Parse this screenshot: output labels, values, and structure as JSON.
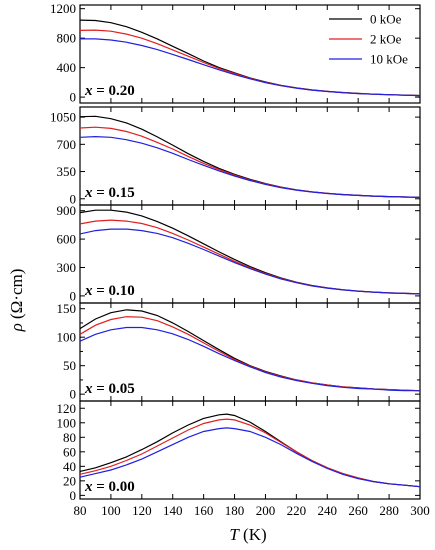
{
  "chart_data": {
    "type": "line",
    "xlabel": {
      "symbol": "T",
      "unit": " (K)"
    },
    "ylabel": {
      "symbol": "ρ",
      "unit": " (Ω·cm)"
    },
    "xlim": [
      80,
      300
    ],
    "xticks": [
      80,
      100,
      120,
      140,
      160,
      180,
      200,
      220,
      240,
      260,
      280,
      300
    ],
    "legend": {
      "placement": "top-right of top panel",
      "entries": [
        {
          "label": "0 kOe",
          "color": "#000000"
        },
        {
          "label": "2 kOe",
          "color": "#e02020"
        },
        {
          "label": "10 kOe",
          "color": "#2020e0"
        }
      ]
    },
    "panels": [
      {
        "label": {
          "var": "x",
          "value": " = 0.20"
        },
        "ylim": [
          -80,
          1250
        ],
        "yticks": [
          0,
          400,
          800,
          1200
        ],
        "yticklabels": [
          "0",
          "400",
          "800",
          "1200"
        ],
        "x": [
          80,
          90,
          100,
          110,
          120,
          130,
          140,
          150,
          160,
          170,
          180,
          190,
          200,
          210,
          220,
          230,
          240,
          250,
          260,
          270,
          280,
          290,
          300
        ],
        "series": [
          {
            "name": "0 kOe",
            "color": "#000000",
            "values": [
              1045,
              1040,
              1010,
              955,
              880,
              790,
              690,
              590,
              490,
              400,
              330,
              260,
              205,
              160,
              125,
              98,
              78,
              62,
              50,
              40,
              33,
              27,
              22
            ]
          },
          {
            "name": "2 kOe",
            "color": "#e02020",
            "values": [
              905,
              910,
              895,
              855,
              800,
              725,
              640,
              555,
              470,
              390,
              320,
              255,
              200,
              158,
              123,
              97,
              77,
              61,
              49,
              40,
              32,
              26,
              21
            ]
          },
          {
            "name": "10 kOe",
            "color": "#2020e0",
            "values": [
              790,
              790,
              775,
              745,
              700,
              645,
              580,
              510,
              440,
              370,
              305,
              248,
              195,
              155,
              121,
              95,
              76,
              60,
              48,
              39,
              32,
              26,
              21
            ]
          }
        ]
      },
      {
        "label": {
          "var": "x",
          "value": " = 0.15"
        },
        "ylim": [
          -80,
          1180
        ],
        "yticks": [
          0,
          350,
          700,
          1050
        ],
        "yticklabels": [
          "0",
          "350",
          "700",
          "1050"
        ],
        "x": [
          80,
          90,
          100,
          110,
          120,
          130,
          140,
          150,
          160,
          170,
          180,
          190,
          200,
          210,
          220,
          230,
          240,
          250,
          260,
          270,
          280,
          290,
          300
        ],
        "series": [
          {
            "name": "0 kOe",
            "color": "#000000",
            "values": [
              1055,
              1060,
              1030,
              975,
              895,
              795,
              690,
              580,
              480,
              390,
              315,
              250,
              195,
              150,
              115,
              90,
              70,
              55,
              44,
              35,
              28,
              23,
              19
            ]
          },
          {
            "name": "2 kOe",
            "color": "#e02020",
            "values": [
              910,
              920,
              905,
              865,
              805,
              725,
              640,
              545,
              455,
              375,
              305,
              243,
              190,
              147,
              113,
              88,
              69,
              54,
              43,
              35,
              28,
              23,
              19
            ]
          },
          {
            "name": "10 kOe",
            "color": "#2020e0",
            "values": [
              790,
              800,
              790,
              760,
              715,
              655,
              585,
              505,
              430,
              358,
              293,
              235,
              185,
              143,
              111,
              87,
              68,
              54,
              43,
              34,
              28,
              23,
              19
            ]
          }
        ]
      },
      {
        "label": {
          "var": "x",
          "value": " = 0.10"
        },
        "ylim": [
          -75,
          960
        ],
        "yticks": [
          0,
          300,
          600,
          900
        ],
        "yticklabels": [
          "0",
          "300",
          "600",
          "900"
        ],
        "x": [
          80,
          90,
          100,
          110,
          120,
          130,
          140,
          150,
          160,
          170,
          180,
          190,
          200,
          210,
          220,
          230,
          240,
          250,
          260,
          270,
          280,
          290,
          300
        ],
        "series": [
          {
            "name": "0 kOe",
            "color": "#000000",
            "values": [
              880,
              905,
              905,
              885,
              845,
              785,
              715,
              635,
              550,
              465,
              385,
              310,
              245,
              190,
              145,
              110,
              84,
              65,
              51,
              40,
              32,
              26,
              21
            ]
          },
          {
            "name": "2 kOe",
            "color": "#e02020",
            "values": [
              760,
              790,
              800,
              790,
              765,
              720,
              660,
              590,
              515,
              440,
              365,
              298,
              237,
              185,
              142,
              108,
              83,
              64,
              50,
              40,
              32,
              26,
              21
            ]
          },
          {
            "name": "10 kOe",
            "color": "#2020e0",
            "values": [
              655,
              690,
              705,
              705,
              690,
              660,
              615,
              555,
              490,
              420,
              352,
              288,
              230,
              180,
              139,
              106,
              82,
              63,
              50,
              39,
              31,
              26,
              21
            ]
          }
        ]
      },
      {
        "label": {
          "var": "x",
          "value": " = 0.05"
        },
        "ylim": [
          -12,
          160
        ],
        "yticks": [
          0,
          25,
          50,
          75,
          100,
          125,
          150
        ],
        "yticklabels": [
          "0",
          "",
          "50",
          "",
          "100",
          "",
          "150"
        ],
        "x": [
          80,
          90,
          100,
          110,
          120,
          130,
          140,
          150,
          160,
          170,
          180,
          190,
          200,
          210,
          220,
          230,
          240,
          250,
          260,
          270,
          280,
          290,
          300
        ],
        "series": [
          {
            "name": "0 kOe",
            "color": "#000000",
            "values": [
              115,
              132,
              143,
              148,
              146,
              138,
              125,
              110,
              94,
              78,
              63,
              50,
              40,
              32,
              25,
              20,
              16,
              13,
              11,
              9,
              8,
              7,
              6
            ]
          },
          {
            "name": "2 kOe",
            "color": "#e02020",
            "values": [
              105,
              121,
              131,
              136,
              135,
              129,
              118,
              105,
              90,
              75,
              61,
              49,
              39,
              31,
              25,
              20,
              16,
              13,
              11,
              9,
              8,
              7,
              6
            ]
          },
          {
            "name": "10 kOe",
            "color": "#2020e0",
            "values": [
              93,
              105,
              113,
              117,
              117,
              113,
              106,
              96,
              84,
              71,
              59,
              48,
              38,
              30,
              24,
              19,
              15,
              12,
              10,
              9,
              7,
              6,
              6
            ]
          }
        ]
      },
      {
        "label": {
          "var": "x",
          "value": " = 0.00"
        },
        "ylim": [
          -5,
          130
        ],
        "yticks": [
          0,
          20,
          40,
          60,
          80,
          100,
          120
        ],
        "yticklabels": [
          "0",
          "20",
          "40",
          "60",
          "80",
          "100",
          "120"
        ],
        "x": [
          80,
          90,
          100,
          110,
          120,
          130,
          140,
          150,
          160,
          170,
          175,
          180,
          190,
          200,
          210,
          220,
          230,
          240,
          250,
          260,
          270,
          280,
          290,
          300
        ],
        "series": [
          {
            "name": "0 kOe",
            "color": "#000000",
            "values": [
              33,
              38,
              45,
              53,
              63,
              74,
              86,
              97,
              106,
              111,
              112,
              110,
              101,
              88,
              74,
              60,
              48,
              38,
              30,
              24,
              19,
              16,
              14,
              12
            ]
          },
          {
            "name": "2 kOe",
            "color": "#e02020",
            "values": [
              29,
              34,
              40,
              48,
              57,
              68,
              79,
              90,
              99,
              104,
              105,
              104,
              97,
              86,
              73,
              60,
              48,
              38,
              30,
              24,
              19,
              16,
              14,
              12
            ]
          },
          {
            "name": "10 kOe",
            "color": "#2020e0",
            "values": [
              25,
              30,
              35,
              42,
              50,
              60,
              70,
              80,
              88,
              92,
              93,
              92,
              88,
              80,
              70,
              58,
              47,
              37,
              29,
              23,
              19,
              16,
              14,
              12
            ]
          }
        ]
      }
    ]
  }
}
